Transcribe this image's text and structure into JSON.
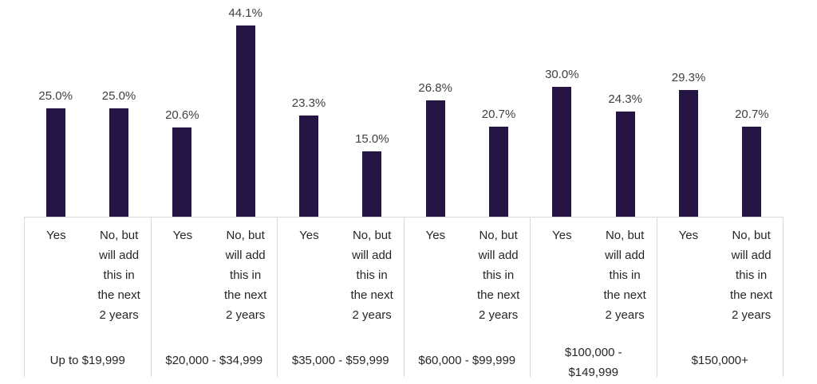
{
  "chart_data": {
    "type": "bar",
    "title": "",
    "categories": [
      "Up to $19,999",
      "$20,000 - $34,999",
      "$35,000 - $59,999",
      "$60,000 - $99,999",
      "$100,000 - $149,999",
      "$150,000+"
    ],
    "series": [
      {
        "name": "Yes",
        "values": [
          25.0,
          20.6,
          23.3,
          26.8,
          30.0,
          29.3
        ]
      },
      {
        "name": "No, but will add this in the next 2 years",
        "values": [
          25.0,
          44.1,
          15.0,
          20.7,
          24.3,
          20.7
        ]
      }
    ],
    "data_labels": [
      [
        "25.0%",
        "25.0%"
      ],
      [
        "20.6%",
        "44.1%"
      ],
      [
        "23.3%",
        "15.0%"
      ],
      [
        "26.8%",
        "20.7%"
      ],
      [
        "30.0%",
        "24.3%"
      ],
      [
        "29.3%",
        "20.7%"
      ]
    ],
    "value_suffix": "%",
    "value_decimals": 1,
    "xlabel": "",
    "ylabel": "",
    "ylim": [
      0,
      50
    ],
    "gridlines": false,
    "legend_position": "none",
    "axis_style": "multi-level-category",
    "colors": {
      "bar": "#251545",
      "data_label": "#404040",
      "axis_label": "#262626",
      "divider": "#D9D9D9",
      "background": "#FFFFFF"
    }
  }
}
